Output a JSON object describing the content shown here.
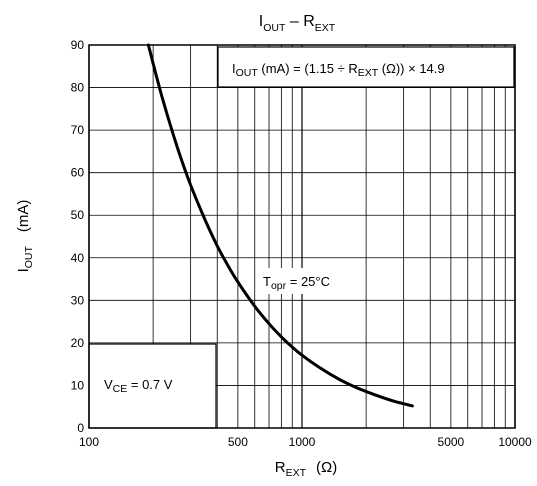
{
  "chart_data": {
    "type": "line",
    "title": {
      "main": "I",
      "sub": "OUT",
      "rest": " – R",
      "sub2": "EXT"
    },
    "xlabel": {
      "main": "R",
      "sub": "EXT",
      "unit": "(Ω)"
    },
    "ylabel": {
      "main": "I",
      "sub": "OUT",
      "unit": "(mA)"
    },
    "x_scale": "log",
    "xlim": [
      100,
      10000
    ],
    "ylim": [
      0,
      90
    ],
    "grid": true,
    "x_ticks": [
      {
        "value": 100,
        "label": "100"
      },
      {
        "value": 500,
        "label": "500"
      },
      {
        "value": 1000,
        "label": "1000"
      },
      {
        "value": 5000,
        "label": "5000"
      },
      {
        "value": 10000,
        "label": "10000"
      }
    ],
    "y_ticks": [
      {
        "value": 0,
        "label": "0"
      },
      {
        "value": 10,
        "label": "10"
      },
      {
        "value": 20,
        "label": "20"
      },
      {
        "value": 30,
        "label": "30"
      },
      {
        "value": 40,
        "label": "40"
      },
      {
        "value": 50,
        "label": "50"
      },
      {
        "value": 60,
        "label": "60"
      },
      {
        "value": 70,
        "label": "70"
      },
      {
        "value": 80,
        "label": "80"
      },
      {
        "value": 90,
        "label": "90"
      }
    ],
    "formula": {
      "p1": "I",
      "s1": "OUT",
      "p2": " (mA) = (1.15 ÷ R",
      "s2": "EXT",
      "p3": " (Ω)) × 14.9"
    },
    "temperature_note": {
      "main": "T",
      "sub": "opr",
      "rest": " = 25°C"
    },
    "vce_note": {
      "main": "V",
      "sub": "CE",
      "rest": " = 0.7 V"
    },
    "series": [
      {
        "x": [
          190,
          220,
          260,
          300,
          350,
          400,
          450,
          500,
          600,
          700,
          800,
          900,
          1000,
          1200,
          1500,
          1800,
          2200,
          2700,
          3300
        ],
        "y": [
          90,
          77.9,
          65.9,
          57.1,
          49,
          42.8,
          38.1,
          34.3,
          28.6,
          24.5,
          21.4,
          19,
          17.1,
          14.3,
          11.4,
          9.5,
          7.8,
          6.3,
          5.2
        ]
      }
    ]
  }
}
